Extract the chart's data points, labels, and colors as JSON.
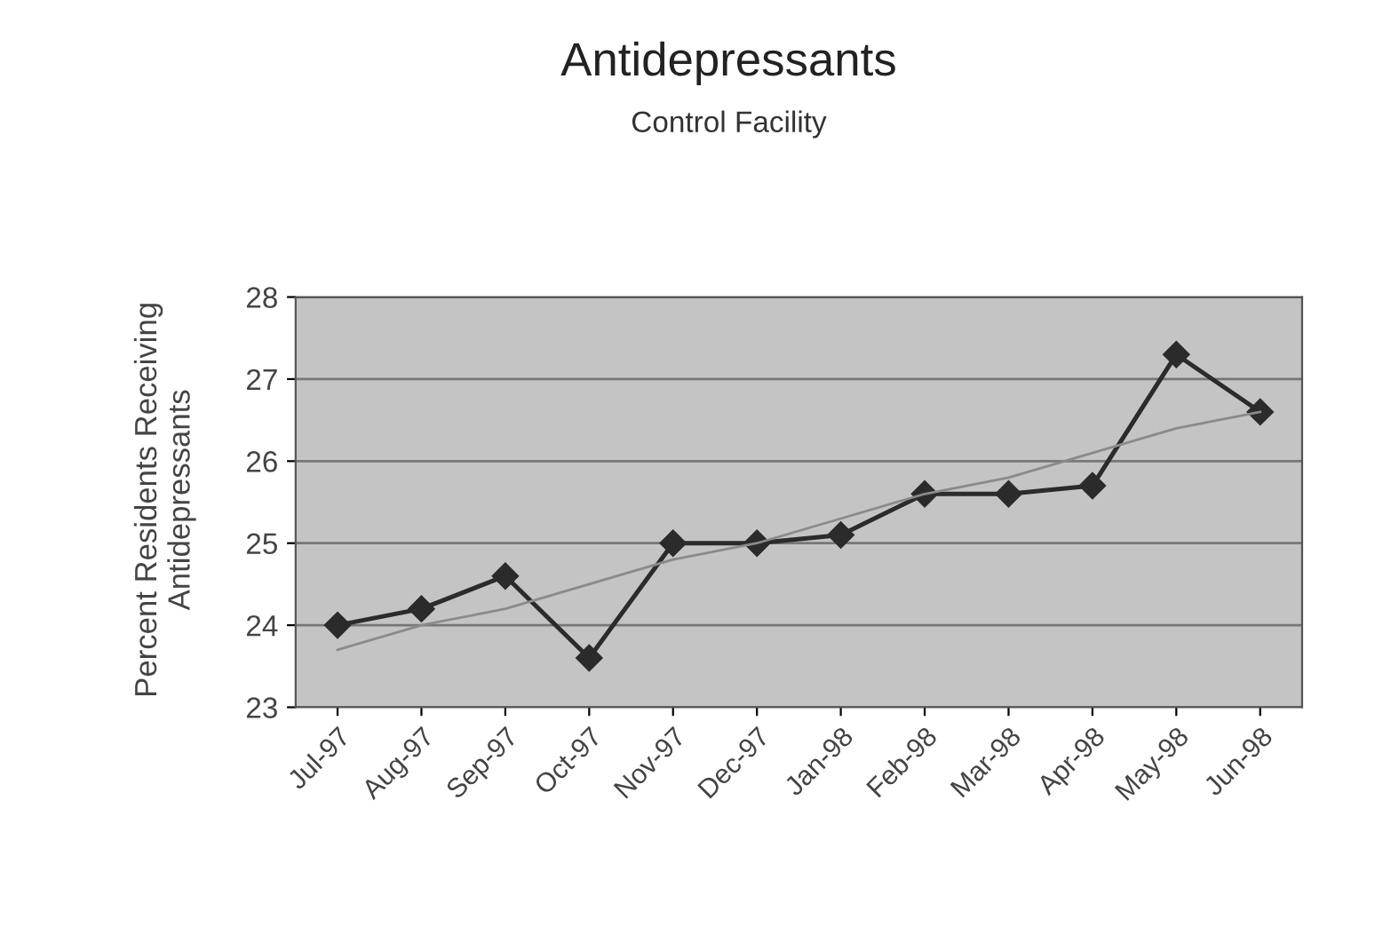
{
  "chart_data": {
    "type": "line",
    "title": "Antidepressants",
    "subtitle": "Control Facility",
    "ylabel": "Percent Residents Receiving\nAntidepressants",
    "categories": [
      "Jul-97",
      "Aug-97",
      "Sep-97",
      "Oct-97",
      "Nov-97",
      "Dec-97",
      "Jan-98",
      "Feb-98",
      "Mar-98",
      "Apr-98",
      "May-98",
      "Jun-98"
    ],
    "series": [
      {
        "color": "#2b2b2b",
        "marker": "diamond",
        "line_style": "solid",
        "values": [
          24.0,
          24.2,
          24.6,
          23.6,
          25.0,
          25.0,
          25.1,
          25.6,
          25.6,
          25.7,
          27.3,
          26.6
        ]
      },
      {
        "color": "#8a8a8a",
        "marker": "none",
        "line_style": "solid",
        "values": [
          23.7,
          24.0,
          24.2,
          24.5,
          24.8,
          25.0,
          25.3,
          25.6,
          25.8,
          26.1,
          26.4,
          26.6
        ]
      }
    ],
    "ylim": [
      23,
      28
    ],
    "yticks": [
      23,
      24,
      25,
      26,
      27,
      28
    ],
    "grid": "y",
    "legend": false
  }
}
